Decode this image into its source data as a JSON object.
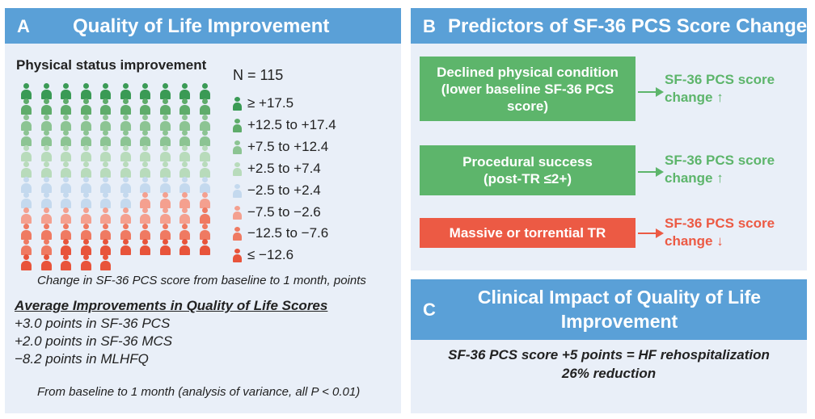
{
  "panel_a": {
    "letter": "A",
    "title": "Quality of Life Improvement",
    "subtitle": "Physical status improvement",
    "n_label": "N = 115",
    "legend": [
      {
        "label": "≥ +17.5",
        "color": "#3a9a55"
      },
      {
        "label": "+12.5 to +17.4",
        "color": "#5fac6b"
      },
      {
        "label": "+7.5 to +12.4",
        "color": "#8cc493"
      },
      {
        "label": "+2.5 to +7.4",
        "color": "#b8dbbb"
      },
      {
        "label": "−2.5 to +2.4",
        "color": "#c4d9ee"
      },
      {
        "label": "−7.5 to −2.6",
        "color": "#f4a08f"
      },
      {
        "label": "−12.5 to −7.6",
        "color": "#ef7a62"
      },
      {
        "label": "≤ −12.6",
        "color": "#e8543b"
      }
    ],
    "axis_caption": "Change in SF-36 PCS score from baseline to 1 month, points",
    "avg_title": "Average Improvements in Quality of Life Scores",
    "avg_lines": [
      "+3.0 points in SF-36 PCS",
      "+2.0 points in SF-36 MCS",
      "−8.2 points in MLHFQ"
    ],
    "footnote": "From baseline to 1 month (analysis of variance, all P < 0.01)"
  },
  "panel_b": {
    "letter": "B",
    "title": "Predictors of SF-36 PCS Score Change",
    "predictors": [
      {
        "label": "Declined physical condition (lower baseline SF-36 PCS score)",
        "outcome_line1": "SF-36 PCS score",
        "outcome_line2": "change ↑",
        "box_color": "#5db56b",
        "text_color": "#5db56b"
      },
      {
        "label": "Procedural success (post-TR ≤2+)",
        "outcome_line1": "SF-36 PCS score",
        "outcome_line2": "change ↑",
        "box_color": "#5db56b",
        "text_color": "#5db56b"
      },
      {
        "label": "Massive or torrential TR",
        "outcome_line1": "SF-36 PCS score",
        "outcome_line2": "change ↓",
        "box_color": "#ec5a44",
        "text_color": "#ec5a44"
      }
    ]
  },
  "panel_c": {
    "letter": "C",
    "title": "Clinical Impact of Quality of Life Improvement",
    "line1": "SF-36 PCS score +5 points = HF rehospitalization",
    "line2": "26% reduction"
  },
  "chart_data": {
    "type": "table",
    "title": "Physical status improvement",
    "n": 115,
    "unit": "Change in SF-36 PCS score from baseline to 1 month, points",
    "categories": [
      "≥ +17.5",
      "+12.5 to +17.4",
      "+7.5 to +12.4",
      "+2.5 to +7.4",
      "−2.5 to +2.4",
      "−7.5 to −2.6",
      "−12.5 to −7.6",
      "≤ −12.6"
    ],
    "counts": [
      10,
      10,
      20,
      20,
      16,
      13,
      13,
      13
    ],
    "colors": [
      "#3a9a55",
      "#5fac6b",
      "#8cc493",
      "#b8dbbb",
      "#c4d9ee",
      "#f4a08f",
      "#ef7a62",
      "#e8543b"
    ]
  }
}
